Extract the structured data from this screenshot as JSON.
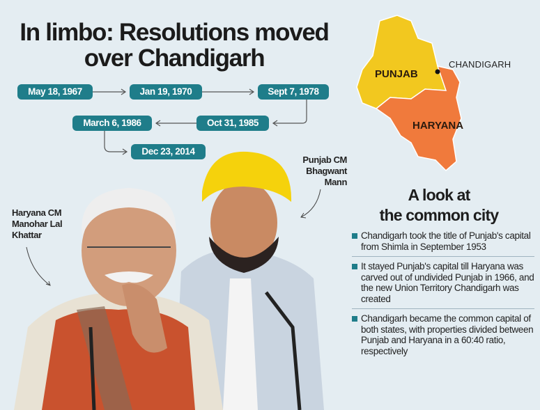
{
  "header": {
    "title_lines": [
      "In limbo: Resolutions moved",
      "over Chandigarh"
    ]
  },
  "timeline": [
    "May 18, 1967",
    "Jan 19, 1970",
    "Sept 7, 1978",
    "Oct 31, 1985",
    "March 6, 1986",
    "Dec 23, 2014"
  ],
  "map": {
    "labels": [
      "PUNJAB",
      "HARYANA",
      "CHANDIGARH"
    ]
  },
  "captions": [
    {
      "lines": [
        "Punjab CM",
        "Bhagwant",
        "Mann"
      ]
    },
    {
      "lines": [
        "Haryana CM",
        "Manohar Lal",
        "Khattar"
      ]
    }
  ],
  "sidebar": {
    "title_lines": [
      "A look at",
      "the common city"
    ],
    "bullets": [
      "Chandigarh took the title of Punjab's capital from Shimla in September 1953",
      "It stayed Punjab's capital till Haryana was carved out of undivided Punjab in 1966, and the new Union Territory Chandigarh was created",
      "Chandigarh became the common capital of both states, with properties divided between Punjab and Haryana in a 60:40 ratio, respectively"
    ]
  }
}
